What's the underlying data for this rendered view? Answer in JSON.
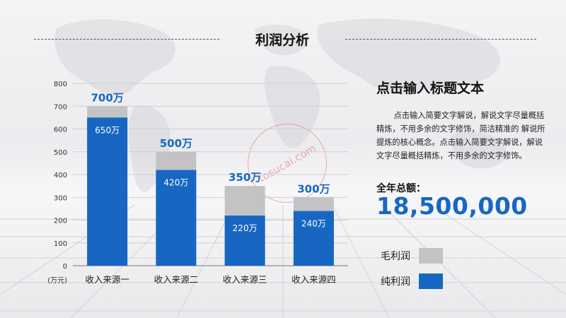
{
  "page_title": "利润分析",
  "side": {
    "heading": "点击输入标题文本",
    "body": "点击输入简要文字解说，解说文字尽量概括精炼，不用多余的文字修饰，简洁精准的 解说所提炼的核心概念。点击输入简要文字解说，解说文字尽量概括精炼，不用多余的文字修饰。",
    "total_label": "全年总额：",
    "total_value": "18,500,000"
  },
  "watermark": "tosucai.com",
  "colors": {
    "accent": "#1767c2",
    "gross": "#c3c3c5",
    "net": "#1767c2"
  },
  "chart_data": {
    "type": "bar",
    "unit_label": "(万元)",
    "categories": [
      "收入来源一",
      "收入来源二",
      "收入来源三",
      "收入来源四"
    ],
    "series": [
      {
        "name": "毛利润",
        "values": [
          700,
          500,
          350,
          300
        ],
        "labels": [
          "700万",
          "500万",
          "350万",
          "300万"
        ]
      },
      {
        "name": "纯利润",
        "values": [
          650,
          420,
          220,
          240
        ],
        "labels": [
          "650万",
          "420万",
          "220万",
          "240万"
        ]
      }
    ],
    "ylim": [
      0,
      800
    ],
    "yticks": [
      0,
      100,
      200,
      300,
      400,
      500,
      600,
      700,
      800
    ],
    "grid": true,
    "legend": "right"
  }
}
